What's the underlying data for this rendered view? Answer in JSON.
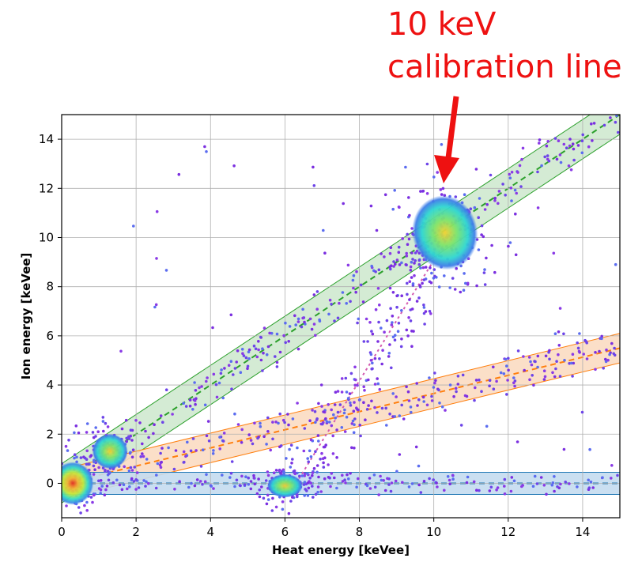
{
  "annotation": {
    "line1": "10 keV",
    "line2": "calibration line",
    "color": "#ee1111"
  },
  "chart_data": {
    "type": "scatter",
    "xlabel": "Heat energy [keVee]",
    "ylabel": "Ion energy [keVee]",
    "xlim": [
      0,
      15
    ],
    "ylim": [
      -1.4,
      15
    ],
    "xticks": [
      0,
      2,
      4,
      6,
      8,
      10,
      12,
      14
    ],
    "yticks": [
      0,
      2,
      4,
      6,
      8,
      10,
      12,
      14
    ],
    "grid": true,
    "bands": [
      {
        "color": "#2ca02c",
        "fill": "#cfe9cf",
        "x": [
          0,
          15
        ],
        "center": [
          0,
          15
        ],
        "half_width": 0.8
      },
      {
        "color": "#ff7f0e",
        "fill": "#fbdcc2",
        "x": [
          0.5,
          15
        ],
        "center": [
          0.15,
          5.5
        ],
        "half_width": 0.6
      },
      {
        "color": "#1f77b4",
        "fill": "#c4dcef",
        "x": [
          0,
          15
        ],
        "center": [
          0,
          0
        ],
        "half_width": 0.45
      }
    ],
    "trend_line": {
      "color": "#d45ab0",
      "x": [
        6.3,
        10.5
      ],
      "y": [
        0,
        10.3
      ]
    },
    "clusters": [
      {
        "cx": 0.3,
        "cy": 0.0,
        "sx": 0.35,
        "sy": 0.55
      },
      {
        "cx": 1.3,
        "cy": 1.3,
        "sx": 0.3,
        "sy": 0.45
      },
      {
        "cx": 6.0,
        "cy": -0.1,
        "sx": 0.3,
        "sy": 0.3
      },
      {
        "cx": 10.3,
        "cy": 10.2,
        "sx": 0.55,
        "sy": 0.95
      }
    ]
  }
}
